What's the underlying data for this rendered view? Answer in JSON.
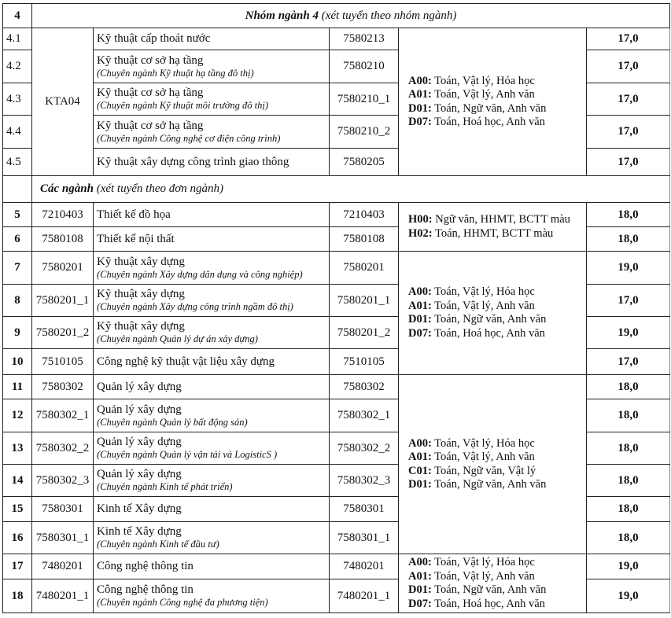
{
  "group4": {
    "stt": "4",
    "title_bold": "Nhóm ngành 4",
    "title_rest": " (xét tuyển theo nhóm ngành)",
    "code": "KTA04",
    "rows": [
      {
        "stt": "4.1",
        "name": "Kỹ thuật cấp thoát nước",
        "sub": "",
        "major_code": "7580213",
        "score": "17,0"
      },
      {
        "stt": "4.2",
        "name": "Kỹ thuật cơ sở hạ tầng",
        "sub": "(Chuyên ngành Kỹ thuật hạ tầng đô thị)",
        "major_code": "7580210",
        "score": "17,0"
      },
      {
        "stt": "4.3",
        "name": "Kỹ thuật cơ sở hạ tầng",
        "sub": "(Chuyên ngành Kỹ thuật môi trường đô thị)",
        "major_code": "7580210_1",
        "score": "17,0"
      },
      {
        "stt": "4.4",
        "name": "Kỹ thuật cơ sở hạ tầng",
        "sub": "(Chuyên ngành Công nghệ cơ điện công trình)",
        "major_code": "7580210_2",
        "score": "17,0"
      },
      {
        "stt": "4.5",
        "name": "Kỹ thuật xây dựng công trình giao thông",
        "sub": "",
        "major_code": "7580205",
        "score": "17,0"
      }
    ]
  },
  "section": {
    "title_bold": "Các ngành",
    "title_rest": " (xét tuyển theo đơn ngành)"
  },
  "combo_groups": [
    [
      {
        "code": "A00:",
        "subjects": " Toán, Vật lý, Hóa học"
      },
      {
        "code": "A01:",
        "subjects": " Toán, Vật lý, Anh văn"
      },
      {
        "code": "D01:",
        "subjects": " Toán, Ngữ văn, Anh văn"
      },
      {
        "code": "D07:",
        "subjects": " Toán, Hoá học, Anh văn"
      }
    ],
    [
      {
        "code": "H00:",
        "subjects": " Ngữ văn, HHMT, BCTT màu"
      },
      {
        "code": "H02:",
        "subjects": " Toán, HHMT, BCTT màu"
      }
    ],
    [
      {
        "code": "A00:",
        "subjects": " Toán, Vật lý, Hóa học"
      },
      {
        "code": "A01:",
        "subjects": " Toán, Vật lý, Anh văn"
      },
      {
        "code": "D01:",
        "subjects": " Toán, Ngữ văn, Anh văn"
      },
      {
        "code": "D07:",
        "subjects": " Toán, Hoá học, Anh văn"
      }
    ],
    [
      {
        "code": "A00:",
        "subjects": " Toán, Vật lý, Hóa học"
      },
      {
        "code": "A01:",
        "subjects": " Toán, Vật lý, Anh văn"
      },
      {
        "code": "C01:",
        "subjects": " Toán, Ngữ văn, Vật lý"
      },
      {
        "code": "D01:",
        "subjects": " Toán, Ngữ văn, Anh văn"
      }
    ],
    [
      {
        "code": "A00:",
        "subjects": " Toán, Vật lý, Hóa học"
      },
      {
        "code": "A01:",
        "subjects": " Toán, Vật lý, Anh văn"
      },
      {
        "code": "D01:",
        "subjects": " Toán, Ngữ văn, Anh văn"
      },
      {
        "code": "D07:",
        "subjects": " Toán, Hoá học, Anh văn"
      }
    ]
  ],
  "rows": [
    {
      "stt": "5",
      "code": "7210403",
      "name": "Thiết kế đồ họa",
      "sub": "",
      "major_code": "7210403",
      "score": "18,0"
    },
    {
      "stt": "6",
      "code": "7580108",
      "name": "Thiết kế nội thất",
      "sub": "",
      "major_code": "7580108",
      "score": "18,0"
    },
    {
      "stt": "7",
      "code": "7580201",
      "name": "Kỹ thuật xây dựng",
      "sub": "(Chuyên ngành Xây dựng dân dụng và công nghiệp)",
      "major_code": "7580201",
      "score": "19,0"
    },
    {
      "stt": "8",
      "code": "7580201_1",
      "name": "Kỹ thuật xây dựng",
      "sub": "(Chuyên ngành Xây dựng công trình ngầm đô thị)",
      "major_code": "7580201_1",
      "score": "17,0"
    },
    {
      "stt": "9",
      "code": "7580201_2",
      "name": "Kỹ thuật xây dựng",
      "sub": "(Chuyên ngành Quản lý dự án xây dựng)",
      "major_code": "7580201_2",
      "score": "19,0"
    },
    {
      "stt": "10",
      "code": "7510105",
      "name": "Công nghệ kỹ thuật vật liệu xây dựng",
      "sub": "",
      "major_code": "7510105",
      "score": "17,0"
    },
    {
      "stt": "11",
      "code": "7580302",
      "name": "Quản lý xây dựng",
      "sub": "",
      "major_code": "7580302",
      "score": "18,0"
    },
    {
      "stt": "12",
      "code": "7580302_1",
      "name": "Quản lý xây dựng",
      "sub": "(Chuyên ngành Quản lý bất động sản)",
      "major_code": "7580302_1",
      "score": "18,0"
    },
    {
      "stt": "13",
      "code": "7580302_2",
      "name": "Quản lý xây dựng",
      "sub": "(Chuyên ngành Quản lý vận tải và LogisticS )",
      "major_code": "7580302_2",
      "score": "18,0"
    },
    {
      "stt": "14",
      "code": "7580302_3",
      "name": "Quản lý xây dựng",
      "sub": "(Chuyên ngành Kinh tế phát triển)",
      "major_code": "7580302_3",
      "score": "18,0"
    },
    {
      "stt": "15",
      "code": "7580301",
      "name": "Kinh tế Xây dựng",
      "sub": "",
      "major_code": "7580301",
      "score": "18,0"
    },
    {
      "stt": "16",
      "code": "7580301_1",
      "name": "Kinh tế Xây dựng",
      "sub": "(Chuyên ngành Kinh tế đầu tư)",
      "major_code": "7580301_1",
      "score": "18,0"
    },
    {
      "stt": "17",
      "code": "7480201",
      "name": "Công nghệ thông tin",
      "sub": "",
      "major_code": "7480201",
      "score": "19,0"
    },
    {
      "stt": "18",
      "code": "7480201_1",
      "name": "Công nghệ thông tin",
      "sub": "(Chuyên ngành Công nghệ đa phương tiện)",
      "major_code": "7480201_1",
      "score": "19,0"
    }
  ]
}
